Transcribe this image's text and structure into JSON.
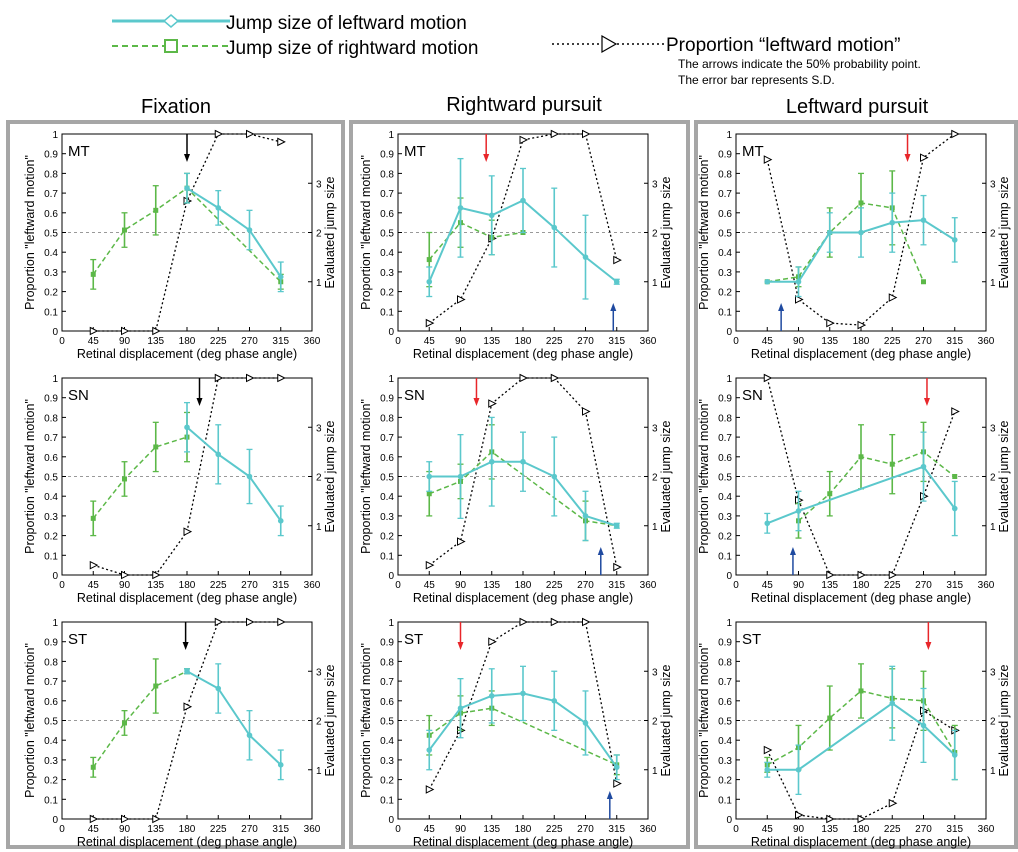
{
  "legend": {
    "left_series": "Jump size of leftward motion",
    "right_series": "Jump size of rightward motion",
    "proportion": "Proportion “leftward motion”",
    "note1": "The arrows indicate the 50% probability point.",
    "note2": "The error bar represents S.D."
  },
  "columns": [
    "Fixation",
    "Rightward pursuit",
    "Leftward pursuit"
  ],
  "axes": {
    "xlabel": "Retinal displacement (deg phase angle)",
    "ylabel_left": "Proportion \"leftward motion\"",
    "ylabel_right": "Evaluated  jump size",
    "x_ticks": [
      "0",
      "45",
      "90",
      "135",
      "180",
      "225",
      "270",
      "315",
      "360"
    ],
    "y_left_ticks": [
      "0",
      "0.1",
      "0.2",
      "0.3",
      "0.4",
      "0.5",
      "0.6",
      "0.7",
      "0.8",
      "0.9",
      "1"
    ],
    "y_right_ticks": [
      "1",
      "2",
      "3"
    ]
  },
  "colors": {
    "leftward": "#5bc8cc",
    "rightward": "#5cb848",
    "proportion": "#000000",
    "red_arrow": "#e8262a",
    "blue_arrow": "#1f4aa0",
    "black_arrow": "#000000",
    "frame": "#a6a6a6"
  },
  "chart_data": [
    {
      "type": "line",
      "subject": "MT",
      "condition": "Fixation",
      "xlim": [
        0,
        360
      ],
      "ylim_left": [
        0,
        1
      ],
      "ylim_right": [
        0,
        4
      ],
      "grid": false,
      "leftward": {
        "x": [
          180,
          225,
          270,
          315
        ],
        "y": [
          2.9,
          2.5,
          2.05,
          1.1
        ],
        "err": [
          0.3,
          0.35,
          0.4,
          0.3
        ]
      },
      "rightward": {
        "x": [
          45,
          90,
          135,
          180,
          315
        ],
        "y": [
          1.15,
          2.05,
          2.45,
          2.9,
          1.0
        ],
        "err": [
          0.3,
          0.35,
          0.5,
          0.3,
          0.15
        ]
      },
      "proportion": {
        "x": [
          45,
          90,
          135,
          180,
          225,
          270,
          315
        ],
        "y": [
          0,
          0,
          0,
          0.66,
          1.0,
          1.0,
          0.96
        ]
      },
      "arrows": [
        {
          "x": 180,
          "color": "black"
        }
      ]
    },
    {
      "type": "line",
      "subject": "MT",
      "condition": "Rightward pursuit",
      "xlim": [
        0,
        360
      ],
      "ylim_left": [
        0,
        1
      ],
      "ylim_right": [
        0,
        4
      ],
      "grid": false,
      "leftward": {
        "x": [
          45,
          90,
          135,
          180,
          225,
          270,
          315
        ],
        "y": [
          1.0,
          2.5,
          2.35,
          2.65,
          2.1,
          1.5,
          1.0
        ],
        "err": [
          0.3,
          1.0,
          0.8,
          0.65,
          0.8,
          0.85,
          0.05
        ]
      },
      "rightward": {
        "x": [
          45,
          90,
          135,
          180
        ],
        "y": [
          1.45,
          2.2,
          1.9,
          2.0
        ],
        "err": [
          0.55,
          0.5,
          0.35,
          0.0
        ]
      },
      "proportion": {
        "x": [
          45,
          90,
          135,
          180,
          225,
          270,
          315
        ],
        "y": [
          0.04,
          0.16,
          0.47,
          0.97,
          1.0,
          1.0,
          0.36
        ]
      },
      "arrows": [
        {
          "x": 127,
          "color": "red"
        },
        {
          "x": 310,
          "color": "blue"
        }
      ]
    },
    {
      "type": "line",
      "subject": "MT",
      "condition": "Leftward pursuit",
      "xlim": [
        0,
        360
      ],
      "ylim_left": [
        0,
        1
      ],
      "ylim_right": [
        0,
        4
      ],
      "grid": false,
      "leftward": {
        "x": [
          45,
          90,
          135,
          180,
          225,
          270,
          315
        ],
        "y": [
          1.0,
          1.0,
          2.0,
          2.0,
          2.2,
          2.25,
          1.85
        ],
        "err": [
          0.0,
          0.3,
          0.4,
          0.5,
          0.6,
          0.5,
          0.45
        ]
      },
      "rightward": {
        "x": [
          45,
          90,
          135,
          180,
          225,
          270
        ],
        "y": [
          1.0,
          1.1,
          2.0,
          2.6,
          2.5,
          1.0
        ],
        "err": [
          0.0,
          0.2,
          0.5,
          0.6,
          0.75,
          0.0
        ]
      },
      "proportion": {
        "x": [
          45,
          90,
          135,
          180,
          225,
          270,
          315
        ],
        "y": [
          0.87,
          0.16,
          0.04,
          0.03,
          0.17,
          0.88,
          1.0
        ]
      },
      "arrows": [
        {
          "x": 247,
          "color": "red"
        },
        {
          "x": 65,
          "color": "blue"
        }
      ]
    },
    {
      "type": "line",
      "subject": "SN",
      "condition": "Fixation",
      "xlim": [
        0,
        360
      ],
      "ylim_left": [
        0,
        1
      ],
      "ylim_right": [
        0,
        4
      ],
      "grid": false,
      "leftward": {
        "x": [
          180,
          225,
          270,
          315
        ],
        "y": [
          3.0,
          2.45,
          2.0,
          1.1
        ],
        "err": [
          0.5,
          0.6,
          0.55,
          0.3
        ]
      },
      "rightward": {
        "x": [
          45,
          90,
          135,
          180
        ],
        "y": [
          1.15,
          1.95,
          2.6,
          2.8
        ],
        "err": [
          0.35,
          0.35,
          0.5,
          0.5
        ]
      },
      "proportion": {
        "x": [
          45,
          90,
          135,
          180,
          225,
          270,
          315
        ],
        "y": [
          0.05,
          0,
          0,
          0.22,
          1.0,
          1.0,
          1.0
        ]
      },
      "arrows": [
        {
          "x": 198,
          "color": "black"
        }
      ]
    },
    {
      "type": "line",
      "subject": "SN",
      "condition": "Rightward pursuit",
      "xlim": [
        0,
        360
      ],
      "ylim_left": [
        0,
        1
      ],
      "ylim_right": [
        0,
        4
      ],
      "grid": false,
      "leftward": {
        "x": [
          45,
          90,
          135,
          180,
          225,
          270,
          315
        ],
        "y": [
          2.0,
          2.0,
          2.3,
          2.3,
          2.0,
          1.2,
          1.0
        ],
        "err": [
          0.3,
          0.85,
          0.9,
          0.6,
          0.8,
          0.5,
          0.05
        ]
      },
      "rightward": {
        "x": [
          45,
          90,
          135,
          270,
          315
        ],
        "y": [
          1.65,
          1.9,
          2.5,
          1.1,
          1.0
        ],
        "err": [
          0.45,
          0.35,
          0.55,
          0.4,
          0.0
        ]
      },
      "proportion": {
        "x": [
          45,
          90,
          135,
          180,
          225,
          270,
          315
        ],
        "y": [
          0.05,
          0.17,
          0.87,
          1.0,
          1.0,
          0.83,
          0.04
        ]
      },
      "arrows": [
        {
          "x": 113,
          "color": "red"
        },
        {
          "x": 292,
          "color": "blue"
        }
      ]
    },
    {
      "type": "line",
      "subject": "SN",
      "condition": "Leftward pursuit",
      "xlim": [
        0,
        360
      ],
      "ylim_left": [
        0,
        1
      ],
      "ylim_right": [
        0,
        4
      ],
      "grid": false,
      "leftward": {
        "x": [
          45,
          90,
          270,
          315
        ],
        "y": [
          1.05,
          1.3,
          2.2,
          1.35
        ],
        "err": [
          0.2,
          0.4,
          0.7,
          0.55
        ]
      },
      "rightward": {
        "x": [
          90,
          135,
          180,
          225,
          270,
          315
        ],
        "y": [
          1.1,
          1.65,
          2.4,
          2.25,
          2.5,
          2.0
        ],
        "err": [
          0.35,
          0.45,
          0.65,
          0.6,
          0.6,
          0.0
        ]
      },
      "proportion": {
        "x": [
          45,
          90,
          135,
          180,
          225,
          270,
          315
        ],
        "y": [
          1.0,
          0.38,
          0,
          0,
          0,
          0.4,
          0.83
        ]
      },
      "arrows": [
        {
          "x": 275,
          "color": "red"
        },
        {
          "x": 82,
          "color": "blue"
        }
      ]
    },
    {
      "type": "line",
      "subject": "ST",
      "condition": "Fixation",
      "xlim": [
        0,
        360
      ],
      "ylim_left": [
        0,
        1
      ],
      "ylim_right": [
        0,
        4
      ],
      "grid": false,
      "leftward": {
        "x": [
          180,
          225,
          270,
          315
        ],
        "y": [
          3.0,
          2.65,
          1.7,
          1.1
        ],
        "err": [
          0.05,
          0.5,
          0.5,
          0.3
        ]
      },
      "rightward": {
        "x": [
          45,
          90,
          135,
          180
        ],
        "y": [
          1.05,
          1.95,
          2.7,
          3.0
        ],
        "err": [
          0.2,
          0.25,
          0.55,
          0.05
        ]
      },
      "proportion": {
        "x": [
          45,
          90,
          135,
          180,
          225,
          270,
          315
        ],
        "y": [
          0,
          0,
          0,
          0.57,
          1.0,
          1.0,
          1.0
        ]
      },
      "arrows": [
        {
          "x": 178,
          "color": "black"
        }
      ]
    },
    {
      "type": "line",
      "subject": "ST",
      "condition": "Rightward pursuit",
      "xlim": [
        0,
        360
      ],
      "ylim_left": [
        0,
        1
      ],
      "ylim_right": [
        0,
        4
      ],
      "grid": false,
      "leftward": {
        "x": [
          45,
          90,
          135,
          180,
          225,
          270,
          315
        ],
        "y": [
          1.4,
          2.25,
          2.5,
          2.55,
          2.4,
          1.95,
          1.05
        ],
        "err": [
          0.4,
          0.6,
          0.55,
          0.55,
          0.6,
          0.65,
          0.25
        ]
      },
      "rightward": {
        "x": [
          45,
          90,
          135,
          315
        ],
        "y": [
          1.7,
          2.15,
          2.25,
          1.1
        ],
        "err": [
          0.4,
          0.35,
          0.35,
          0.2
        ]
      },
      "proportion": {
        "x": [
          45,
          90,
          135,
          180,
          225,
          270,
          315
        ],
        "y": [
          0.15,
          0.45,
          0.9,
          1.0,
          1.0,
          1.0,
          0.18
        ]
      },
      "arrows": [
        {
          "x": 90,
          "color": "red"
        },
        {
          "x": 305,
          "color": "blue"
        }
      ]
    },
    {
      "type": "line",
      "subject": "ST",
      "condition": "Leftward pursuit",
      "xlim": [
        0,
        360
      ],
      "ylim_left": [
        0,
        1
      ],
      "ylim_right": [
        0,
        4
      ],
      "grid": false,
      "leftward": {
        "x": [
          45,
          90,
          225,
          270,
          315
        ],
        "y": [
          1.0,
          1.0,
          2.35,
          1.9,
          1.3
        ],
        "err": [
          0.15,
          0.5,
          0.75,
          0.75,
          0.5
        ]
      },
      "rightward": {
        "x": [
          45,
          90,
          135,
          180,
          225,
          270,
          315
        ],
        "y": [
          1.1,
          1.45,
          2.05,
          2.6,
          2.45,
          2.4,
          1.35
        ],
        "err": [
          0.15,
          0.45,
          0.65,
          0.55,
          0.6,
          0.6,
          0.55
        ]
      },
      "proportion": {
        "x": [
          45,
          90,
          135,
          180,
          225,
          270,
          315
        ],
        "y": [
          0.35,
          0.02,
          0,
          0,
          0.08,
          0.55,
          0.45
        ]
      },
      "arrows": [
        {
          "x": 277,
          "color": "red"
        }
      ]
    }
  ]
}
